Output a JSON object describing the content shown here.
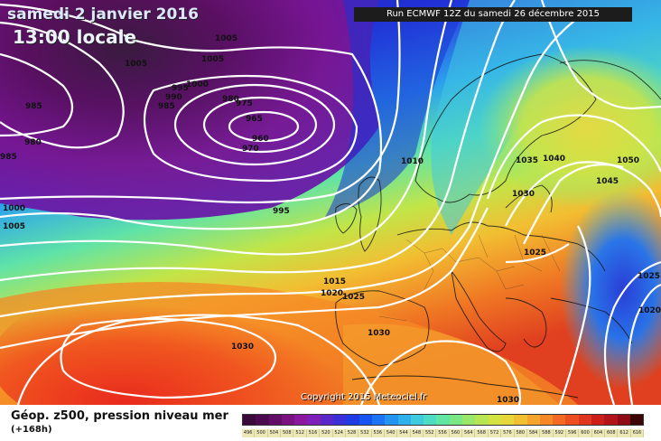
{
  "header": {
    "date": "samedi 2 janvier 2016",
    "time": "13:00 locale",
    "run": "Run ECMWF 12Z du samedi 26 décembre 2015"
  },
  "copyright": "Copyright 2015 Meteociel.fr",
  "legend": {
    "parameter": "Géop. z500, pression niveau mer",
    "lead_time": "(+168h)",
    "scale_values": [
      "496",
      "500",
      "504",
      "508",
      "512",
      "516",
      "520",
      "524",
      "528",
      "532",
      "536",
      "540",
      "544",
      "548",
      "552",
      "556",
      "560",
      "564",
      "568",
      "572",
      "576",
      "580",
      "584",
      "588",
      "592",
      "596",
      "600",
      "604",
      "608",
      "612",
      "616"
    ],
    "scale_colors": [
      "#3a0a3a",
      "#4d0b4f",
      "#620d66",
      "#7a1282",
      "#8c18a0",
      "#7e1fb8",
      "#5a27c9",
      "#3a2fd8",
      "#1f3be6",
      "#1755f2",
      "#1c74f5",
      "#2394f2",
      "#2eb0ec",
      "#3ecbe0",
      "#4fdcc4",
      "#62e6a4",
      "#7be886",
      "#99e86a",
      "#b8e652",
      "#d2e342",
      "#e6d73a",
      "#f1c032",
      "#f6a42c",
      "#f78826",
      "#f36a22",
      "#ec4e20",
      "#e0351e",
      "#cc1f1c",
      "#b3131b",
      "#8f0c16",
      "#3c0606"
    ]
  },
  "isobars": [
    {
      "label": "1005",
      "pos": "top-left-1"
    },
    {
      "label": "1005",
      "pos": "top-left-2"
    },
    {
      "label": "1005",
      "pos": "top-left-3"
    },
    {
      "label": "1000",
      "pos": "iceland-1"
    },
    {
      "label": "995",
      "pos": "iceland-2"
    },
    {
      "label": "990",
      "pos": "iceland-3"
    },
    {
      "label": "985",
      "pos": "iceland-4"
    },
    {
      "label": "985",
      "pos": "west-1"
    },
    {
      "label": "980",
      "pos": "west-2"
    },
    {
      "label": "980",
      "pos": "low-1"
    },
    {
      "label": "975",
      "pos": "low-2"
    },
    {
      "label": "965",
      "pos": "low-3"
    },
    {
      "label": "960",
      "pos": "low-4"
    },
    {
      "label": "970",
      "pos": "low-5"
    },
    {
      "label": "985",
      "pos": "edge-west"
    },
    {
      "label": "1010",
      "pos": "north-sea"
    },
    {
      "label": "995",
      "pos": "atlantic"
    },
    {
      "label": "1000",
      "pos": "west-3"
    },
    {
      "label": "1005",
      "pos": "west-4"
    },
    {
      "label": "1035",
      "pos": "scandinavia-1"
    },
    {
      "label": "1040",
      "pos": "scandinavia-2"
    },
    {
      "label": "1050",
      "pos": "russia-1"
    },
    {
      "label": "1045",
      "pos": "russia-2"
    },
    {
      "label": "1030",
      "pos": "baltic"
    },
    {
      "label": "1025",
      "pos": "central-europe"
    },
    {
      "label": "1025",
      "pos": "east-1"
    },
    {
      "label": "1020",
      "pos": "east-2"
    },
    {
      "label": "1015",
      "pos": "biscay-1"
    },
    {
      "label": "1020",
      "pos": "biscay-2"
    },
    {
      "label": "1025",
      "pos": "biscay-3"
    },
    {
      "label": "1030",
      "pos": "iberia"
    },
    {
      "label": "1030",
      "pos": "azores"
    },
    {
      "label": "1030",
      "pos": "north-africa"
    }
  ]
}
